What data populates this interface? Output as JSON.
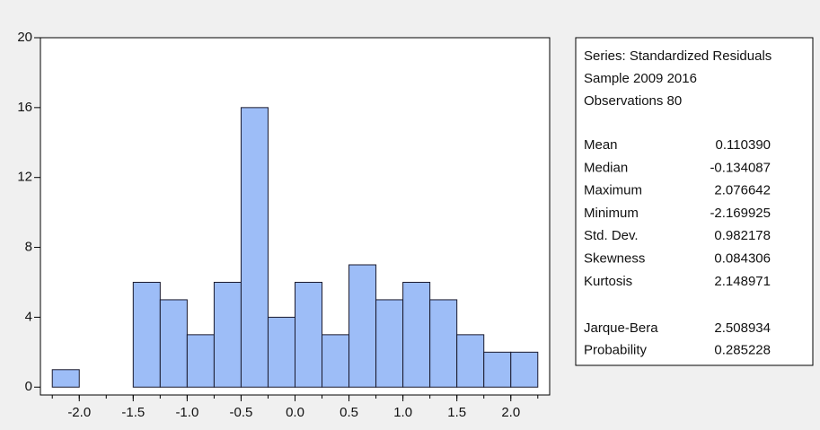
{
  "chart_data": {
    "type": "histogram",
    "bins": [
      -2.25,
      -2.0,
      -1.75,
      -1.5,
      -1.25,
      -1.0,
      -0.75,
      -0.5,
      -0.25,
      0,
      0.25,
      0.5,
      0.75,
      1.0,
      1.25,
      1.5,
      1.75,
      2.0,
      2.25
    ],
    "values": [
      1,
      0,
      0,
      6,
      5,
      3,
      6,
      16,
      4,
      6,
      3,
      7,
      5,
      6,
      5,
      3,
      2,
      2
    ],
    "color": "#9dbdf7",
    "xlim": [
      -2.36,
      2.36
    ],
    "ylim": [
      -0.45,
      20
    ],
    "xticks": [
      {
        "value": -2.0,
        "label": "-2.0"
      },
      {
        "value": -1.5,
        "label": "-1.5"
      },
      {
        "value": -1.0,
        "label": "-1.0"
      },
      {
        "value": -0.5,
        "label": "-0.5"
      },
      {
        "value": 0,
        "label": "0.0"
      },
      {
        "value": 0.5,
        "label": "0.5"
      },
      {
        "value": 1.0,
        "label": "1.0"
      },
      {
        "value": 1.5,
        "label": "1.5"
      },
      {
        "value": 2.0,
        "label": "2.0"
      }
    ],
    "yticks": [
      0,
      4,
      8,
      12,
      16,
      20
    ],
    "stats": {
      "header": [
        "Series: Standardized Residuals",
        "Sample 2009 2016",
        "Observations 80"
      ],
      "rows": [
        [
          "Mean",
          "0.110390"
        ],
        [
          "Median",
          "-0.134087"
        ],
        [
          "Maximum",
          "2.076642"
        ],
        [
          "Minimum",
          "-2.169925"
        ],
        [
          "Std. Dev.",
          "0.982178"
        ],
        [
          "Skewness",
          "0.084306"
        ],
        [
          "Kurtosis",
          "2.148971"
        ]
      ],
      "tests": [
        [
          "Jarque-Bera",
          "2.508934"
        ],
        [
          "Probability",
          "0.285228"
        ]
      ]
    }
  }
}
